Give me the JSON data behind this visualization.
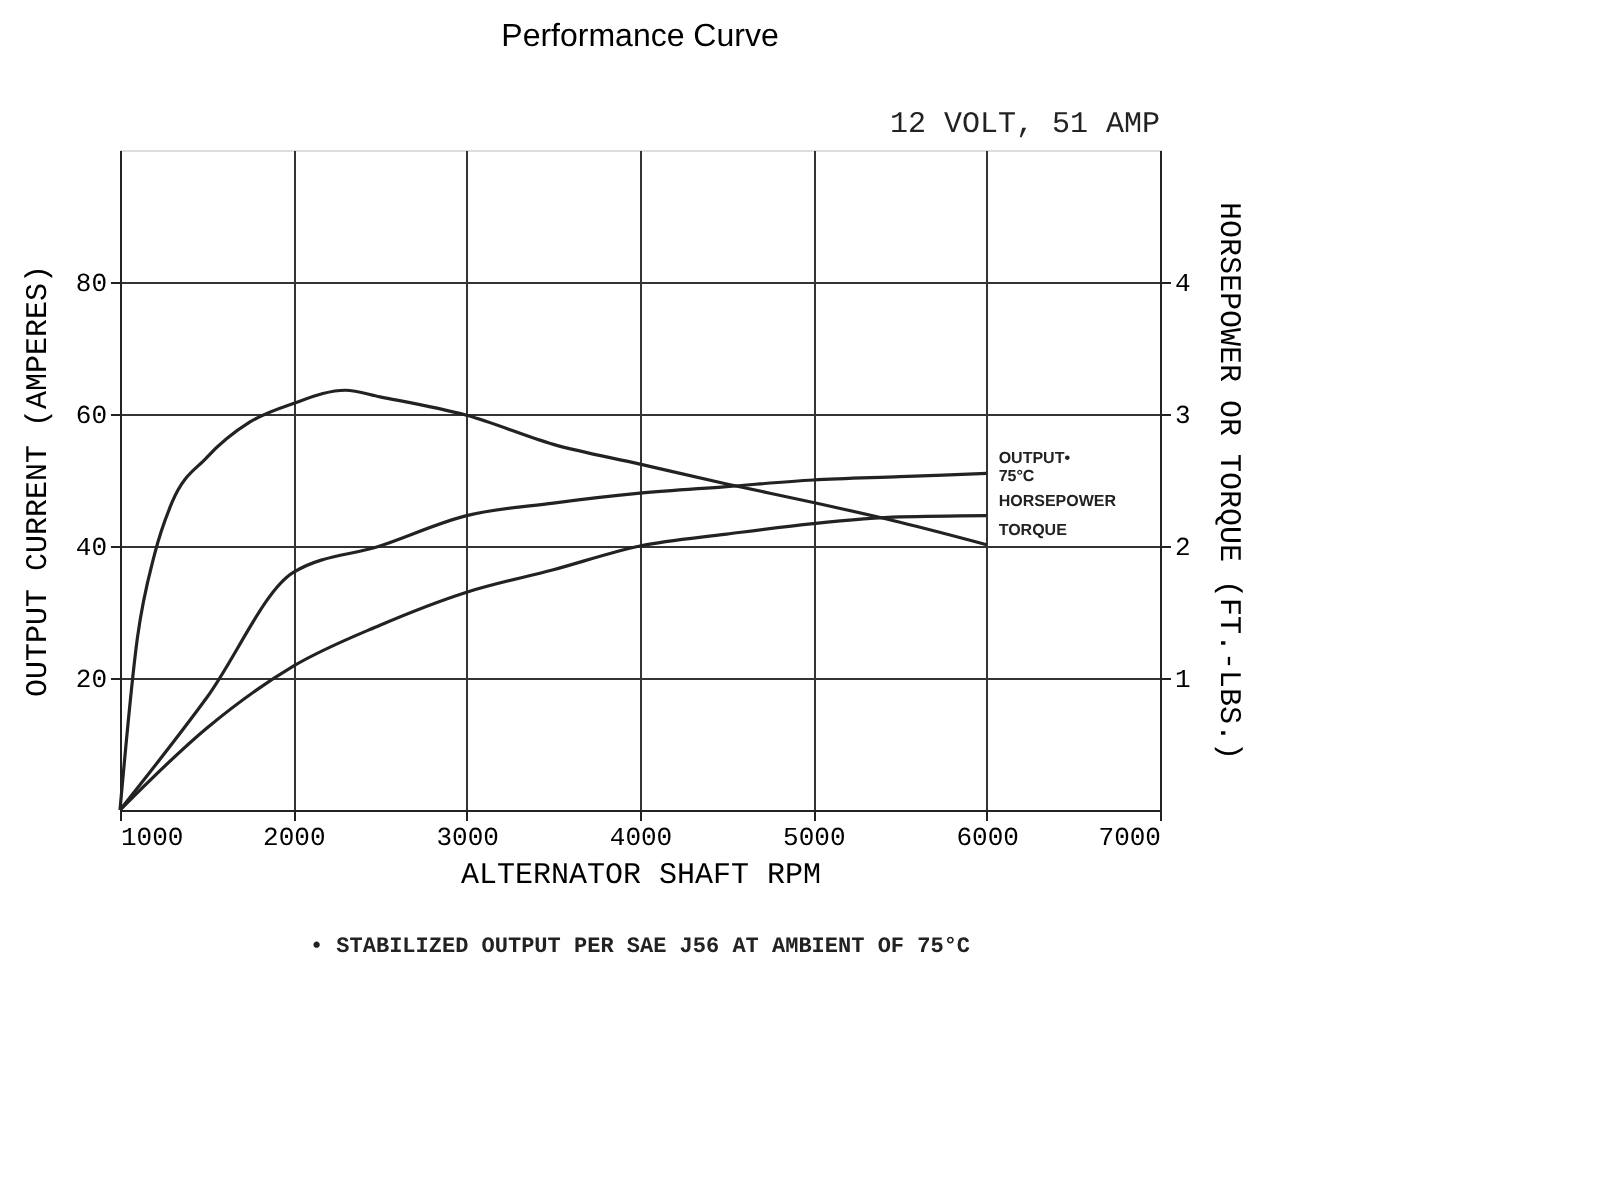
{
  "chart_data": {
    "type": "line",
    "title": "Performance Curve",
    "subtitle": "12 VOLT, 51 AMP",
    "xlabel": "ALTERNATOR SHAFT RPM",
    "ylabel": "OUTPUT CURRENT (AMPERES)",
    "y2label": "HORSEPOWER OR TORQUE (FT.-LBS.)",
    "annotations": [
      "• STABILIZED OUTPUT PER SAE J56 AT AMBIENT OF 75°C"
    ],
    "xlim": [
      1000,
      7000
    ],
    "xticks": [
      1000,
      2000,
      3000,
      4000,
      5000,
      6000,
      7000
    ],
    "ylim": [
      0,
      100
    ],
    "yticks": [
      20,
      40,
      60,
      80
    ],
    "y2lim": [
      0,
      5
    ],
    "y2ticks": [
      1,
      2,
      3,
      4
    ],
    "grid": true,
    "marker": "none",
    "line_style": "solid",
    "series": [
      {
        "name": "TORQUE",
        "color": "#222222",
        "axis": "y2",
        "x": [
          1000,
          1100,
          1200,
          1300,
          1500,
          1750,
          2000,
          2300,
          2500,
          3000,
          3500,
          4000,
          4500,
          5000,
          5500,
          6000
        ],
        "values": [
          0,
          1.3,
          1.94,
          2.33,
          2.67,
          2.94,
          3.08,
          3.18,
          3.13,
          2.99,
          2.77,
          2.62,
          2.47,
          2.33,
          2.18,
          2.01
        ]
      },
      {
        "name": "OUTPUT• 75°C",
        "color": "#222222",
        "x": [
          1000,
          1500,
          2000,
          2500,
          3000,
          3500,
          4000,
          4500,
          5000,
          5500,
          6000
        ],
        "values": [
          0,
          17,
          36,
          40,
          44.6,
          46.5,
          48,
          49,
          50,
          50.5,
          51
        ]
      },
      {
        "name": "HORSEPOWER",
        "color": "#222222",
        "axis": "y2",
        "x": [
          1000,
          1500,
          2000,
          2500,
          3000,
          3500,
          4000,
          4500,
          5000,
          5500,
          6000
        ],
        "values": [
          0,
          0.62,
          1.09,
          1.4,
          1.65,
          1.82,
          2.0,
          2.09,
          2.17,
          2.22,
          2.23
        ]
      }
    ]
  }
}
